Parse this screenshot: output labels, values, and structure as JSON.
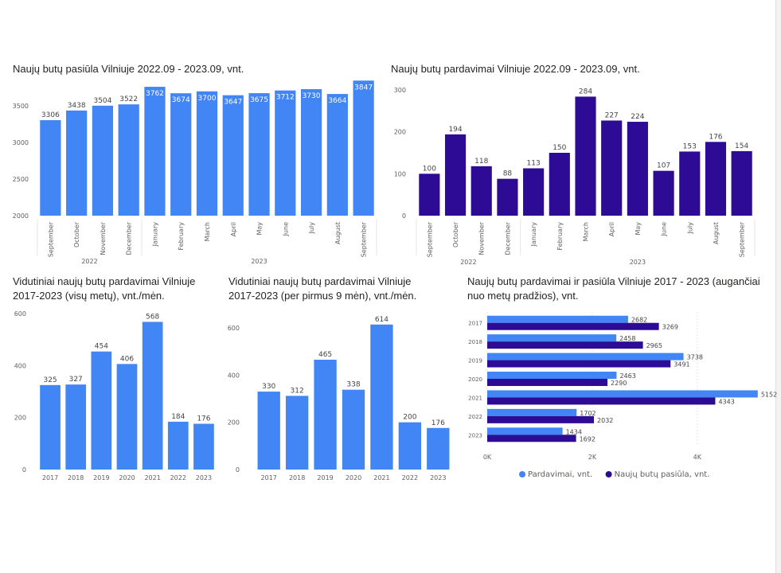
{
  "colors": {
    "blue": "#4285f4",
    "purple": "#2e0b94",
    "axis_text": "#605e5c",
    "label_text": "#444444",
    "grid": "#e6e6e6"
  },
  "chart_data": [
    {
      "id": "c1",
      "type": "bar",
      "title": "Naujų butų pasiūla Vilniuje 2022.09 - 2023.09, vnt.",
      "categories": [
        "September",
        "October",
        "November",
        "December",
        "January",
        "February",
        "March",
        "April",
        "May",
        "June",
        "July",
        "August",
        "September"
      ],
      "groups": [
        {
          "label": "2022",
          "count": 4
        },
        {
          "label": "2023",
          "count": 9
        }
      ],
      "series": [
        {
          "values": [
            3306,
            3438,
            3504,
            3522,
            3762,
            3674,
            3700,
            3647,
            3675,
            3712,
            3730,
            3664,
            3847
          ]
        }
      ],
      "ylim": [
        2000,
        3850
      ],
      "yticks": [
        2000,
        2500,
        3000,
        3500
      ],
      "labels_inside_from": 4
    },
    {
      "id": "c2",
      "type": "bar",
      "title": "Naujų butų pardavimai Vilniuje 2022.09 - 2023.09, vnt.",
      "categories": [
        "September",
        "October",
        "November",
        "December",
        "January",
        "February",
        "March",
        "April",
        "May",
        "June",
        "July",
        "August",
        "September"
      ],
      "groups": [
        {
          "label": "2022",
          "count": 4
        },
        {
          "label": "2023",
          "count": 9
        }
      ],
      "series": [
        {
          "values": [
            100,
            194,
            118,
            88,
            113,
            150,
            284,
            227,
            224,
            107,
            153,
            176,
            154
          ]
        }
      ],
      "ylim": [
        0,
        300
      ],
      "yticks": [
        0,
        100,
        200,
        300
      ]
    },
    {
      "id": "c3",
      "type": "bar",
      "title": "Vidutiniai naujų butų pardavimai Vilniuje\n2017-2023 (visų metų), vnt./mėn.",
      "categories": [
        "2017",
        "2018",
        "2019",
        "2020",
        "2021",
        "2022",
        "2023"
      ],
      "series": [
        {
          "values": [
            325,
            327,
            454,
            406,
            568,
            184,
            176
          ]
        }
      ],
      "ylim": [
        0,
        600
      ],
      "yticks": [
        0,
        200,
        400,
        600
      ]
    },
    {
      "id": "c4",
      "type": "bar",
      "title": "Vidutiniai naujų butų pardavimai Vilniuje\n2017-2023 (per pirmus 9 mėn), vnt./mėn.",
      "categories": [
        "2017",
        "2018",
        "2019",
        "2020",
        "2021",
        "2022",
        "2023"
      ],
      "series": [
        {
          "values": [
            330,
            312,
            465,
            338,
            614,
            200,
            176
          ]
        }
      ],
      "ylim": [
        0,
        620
      ],
      "yticks": [
        0,
        200,
        400,
        600
      ]
    },
    {
      "id": "c5",
      "type": "bar",
      "orientation": "horizontal",
      "title": "Naujų butų pardavimai ir pasiūla Vilniuje 2017 - 2023 (augančiai\nnuo metų pradžios), vnt.",
      "categories": [
        "2017",
        "2018",
        "2019",
        "2020",
        "2021",
        "2022",
        "2023"
      ],
      "series": [
        {
          "name": "Pardavimai, vnt.",
          "values": [
            2682,
            2458,
            3738,
            2463,
            5152,
            1702,
            1434
          ]
        },
        {
          "name": "Naujų butų pasiūla, vnt.",
          "values": [
            3269,
            2965,
            3491,
            2290,
            4343,
            2032,
            1692
          ]
        }
      ],
      "xlim": [
        0,
        5200
      ],
      "xticks": [
        0,
        2000,
        4000
      ],
      "xtick_labels": [
        "0K",
        "2K",
        "4K"
      ],
      "legend": "bottom"
    }
  ]
}
